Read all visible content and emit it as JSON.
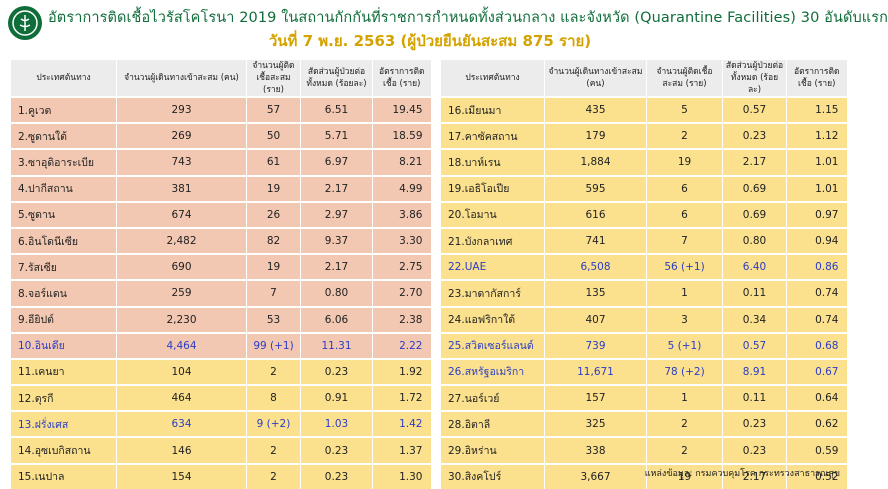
{
  "header": {
    "title": "อัตราการติดเชื้อไวรัสโคโรนา 2019 ในสถานกักกันที่ราชการกำหนดทั้งส่วนกลาง และจังหวัด (Quarantine Facilities) 30 อันดับแรก",
    "subtitle": "วันที่ 7 พ.ย. 2563  (ผู้ป่วยยืนยันสะสม 875 ราย)"
  },
  "colors": {
    "green": "#0f6d3a",
    "gold": "#d4a300",
    "peach": "#f3c8b2",
    "yellow": "#fbe18d",
    "highlight": "#2b3cc4"
  },
  "icons": {
    "logo": "ministry-of-public-health-logo"
  },
  "columns": {
    "country": "ประเทศต้นทาง",
    "travelers": "จำนวนผู้เดินทางเข้าสะสม (คน)",
    "infected": "จำนวนผู้ติดเชื้อสะสม (ราย)",
    "ratio": "สัดส่วนผู้ป่วยต่อทั้งหมด (ร้อยละ)",
    "rate": "อัตราการติดเชื้อ (ราย)"
  },
  "left_rows": [
    {
      "country": "1.คูเวต",
      "travelers": "293",
      "infected": "57",
      "ratio": "6.51",
      "rate": "19.45"
    },
    {
      "country": "2.ซูดานใต้",
      "travelers": "269",
      "infected": "50",
      "ratio": "5.71",
      "rate": "18.59"
    },
    {
      "country": "3.ซาอุดิอาระเบีย",
      "travelers": "743",
      "infected": "61",
      "ratio": "6.97",
      "rate": "8.21"
    },
    {
      "country": "4.ปากีสถาน",
      "travelers": "381",
      "infected": "19",
      "ratio": "2.17",
      "rate": "4.99"
    },
    {
      "country": "5.ซูดาน",
      "travelers": "674",
      "infected": "26",
      "ratio": "2.97",
      "rate": "3.86"
    },
    {
      "country": "6.อินโดนีเซีย",
      "travelers": "2,482",
      "infected": "82",
      "ratio": "9.37",
      "rate": "3.30"
    },
    {
      "country": "7.รัสเซีย",
      "travelers": "690",
      "infected": "19",
      "ratio": "2.17",
      "rate": "2.75"
    },
    {
      "country": "8.จอร์แดน",
      "travelers": "259",
      "infected": "7",
      "ratio": "0.80",
      "rate": "2.70"
    },
    {
      "country": "9.อียิปต์",
      "travelers": "2,230",
      "infected": "53",
      "ratio": "6.06",
      "rate": "2.38"
    },
    {
      "country": "10.อินเดีย",
      "travelers": "4,464",
      "infected": "99 (+1)",
      "ratio": "11.31",
      "rate": "2.22"
    },
    {
      "country": "11.เคนยา",
      "travelers": "104",
      "infected": "2",
      "ratio": "0.23",
      "rate": "1.92"
    },
    {
      "country": "12.ตุรกี",
      "travelers": "464",
      "infected": "8",
      "ratio": "0.91",
      "rate": "1.72"
    },
    {
      "country": "13.ฝรั่งเศส",
      "travelers": "634",
      "infected": "9 (+2)",
      "ratio": "1.03",
      "rate": "1.42"
    },
    {
      "country": "14.อุซเบกิสถาน",
      "travelers": "146",
      "infected": "2",
      "ratio": "0.23",
      "rate": "1.37"
    },
    {
      "country": "15.เนปาล",
      "travelers": "154",
      "infected": "2",
      "ratio": "0.23",
      "rate": "1.30"
    }
  ],
  "right_rows": [
    {
      "country": "16.เมียนมา",
      "travelers": "435",
      "infected": "5",
      "ratio": "0.57",
      "rate": "1.15"
    },
    {
      "country": "17.คาซัคสถาน",
      "travelers": "179",
      "infected": "2",
      "ratio": "0.23",
      "rate": "1.12"
    },
    {
      "country": "18.บาห์เรน",
      "travelers": "1,884",
      "infected": "19",
      "ratio": "2.17",
      "rate": "1.01"
    },
    {
      "country": "19.เอธิโอเปีย",
      "travelers": "595",
      "infected": "6",
      "ratio": "0.69",
      "rate": "1.01"
    },
    {
      "country": "20.โอมาน",
      "travelers": "616",
      "infected": "6",
      "ratio": "0.69",
      "rate": "0.97"
    },
    {
      "country": "21.บังกลาเทศ",
      "travelers": "741",
      "infected": "7",
      "ratio": "0.80",
      "rate": "0.94"
    },
    {
      "country": "22.UAE",
      "travelers": "6,508",
      "infected": "56 (+1)",
      "ratio": "6.40",
      "rate": "0.86"
    },
    {
      "country": "23.มาดากัสการ์",
      "travelers": "135",
      "infected": "1",
      "ratio": "0.11",
      "rate": "0.74"
    },
    {
      "country": "24.แอฟริกาใต้",
      "travelers": "407",
      "infected": "3",
      "ratio": "0.34",
      "rate": "0.74"
    },
    {
      "country": "25.สวิตเซอร์แลนด์",
      "travelers": "739",
      "infected": "5 (+1)",
      "ratio": "0.57",
      "rate": "0.68"
    },
    {
      "country": "26.สหรัฐอเมริกา",
      "travelers": "11,671",
      "infected": "78 (+2)",
      "ratio": "8.91",
      "rate": "0.67"
    },
    {
      "country": "27.นอร์เวย์",
      "travelers": "157",
      "infected": "1",
      "ratio": "0.11",
      "rate": "0.64"
    },
    {
      "country": "28.อิตาลี",
      "travelers": "325",
      "infected": "2",
      "ratio": "0.23",
      "rate": "0.62"
    },
    {
      "country": "29.อิหร่าน",
      "travelers": "338",
      "infected": "2",
      "ratio": "0.23",
      "rate": "0.59"
    },
    {
      "country": "30.สิงคโปร์",
      "travelers": "3,667",
      "infected": "19",
      "ratio": "2.17",
      "rate": "0.52"
    }
  ],
  "source": "แหล่งข้อมูล: กรมควบคุมโรค กระทรวงสาธารณสุข"
}
